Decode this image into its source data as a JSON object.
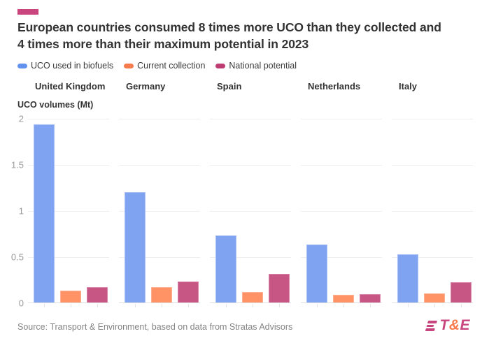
{
  "colors": {
    "brand_magenta": "#C9457D",
    "brand_orange": "#F87B4D",
    "grid": "#ededed",
    "baseline": "#e0e0e0"
  },
  "header": {
    "title": "European countries consumed 8 times more UCO than they collected and 4 times more than their maximum potential in 2023"
  },
  "legend": [
    {
      "label": "UCO used in biofuels",
      "color": "#6392EE"
    },
    {
      "label": "Current collection",
      "color": "#F87B4D"
    },
    {
      "label": "National potential",
      "color": "#BD3D72"
    }
  ],
  "chart_data": {
    "type": "bar",
    "title": "European countries consumed 8 times more UCO than they collected and 4 times more than their maximum potential in 2023",
    "categories": [
      "United Kingdom",
      "Germany",
      "Spain",
      "Netherlands",
      "Italy"
    ],
    "series": [
      {
        "name": "UCO used in biofuels",
        "color": "#7FA3F0",
        "border_color": "#A9C1F6",
        "values": [
          1.93,
          1.2,
          0.73,
          0.63,
          0.52
        ]
      },
      {
        "name": "Current collection",
        "color": "#FF9366",
        "border_color": "#FFB295",
        "values": [
          0.13,
          0.17,
          0.11,
          0.08,
          0.1
        ]
      },
      {
        "name": "National potential",
        "color": "#C75685",
        "border_color": "#D988AB",
        "values": [
          0.17,
          0.23,
          0.31,
          0.09,
          0.22
        ]
      }
    ],
    "xlabel": "",
    "ylabel": "UCO volumes (Mt)",
    "ylim": [
      0,
      2
    ],
    "yticks": [
      2,
      1.5,
      1,
      0.5,
      0
    ],
    "grid": true,
    "legend_position": "top"
  },
  "axis": {
    "ylabel": "UCO volumes (Mt)"
  },
  "footer": {
    "source": "Source: Transport & Environment, based on data from Stratas Advisors",
    "logo_t": "T",
    "logo_amp": "&",
    "logo_e": "E"
  }
}
